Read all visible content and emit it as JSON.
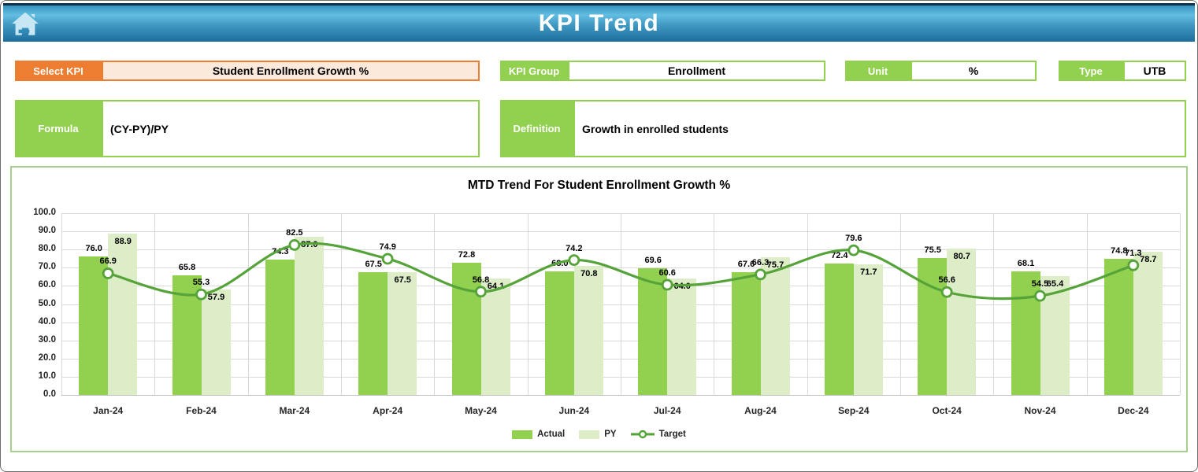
{
  "header": {
    "title": "KPI Trend",
    "home_icon": "home-icon"
  },
  "fields": {
    "select_kpi": {
      "label": "Select KPI",
      "value": "Student Enrollment Growth %"
    },
    "kpi_group": {
      "label": "KPI Group",
      "value": "Enrollment"
    },
    "unit": {
      "label": "Unit",
      "value": "%"
    },
    "type": {
      "label": "Type",
      "value": "UTB"
    },
    "formula": {
      "label": "Formula",
      "value": "(CY-PY)/PY"
    },
    "definition": {
      "label": "Definition",
      "value": "Growth in enrolled students"
    }
  },
  "colors": {
    "accent_orange": "#ED7D31",
    "accent_orange_fill": "#FBE9DC",
    "accent_green": "#92D050",
    "chart_border_green": "#A6CE8E",
    "banner_blue_light": "#63BDE1",
    "banner_blue_dark": "#1D6E9C",
    "gridline": "#D9D9D9"
  },
  "chart_data": {
    "type": "bar",
    "subtype": "bar+line combo",
    "title": "MTD Trend For Student Enrollment Growth %",
    "categories": [
      "Jan-24",
      "Feb-24",
      "Mar-24",
      "Apr-24",
      "May-24",
      "Jun-24",
      "Jul-24",
      "Aug-24",
      "Sep-24",
      "Oct-24",
      "Nov-24",
      "Dec-24"
    ],
    "series": [
      {
        "name": "Actual",
        "type": "bar",
        "color": "#92D050",
        "values": [
          76.0,
          65.8,
          74.3,
          67.5,
          72.8,
          68.0,
          69.6,
          67.6,
          72.4,
          75.5,
          68.1,
          74.8
        ]
      },
      {
        "name": "PY",
        "type": "bar",
        "color": "#DCEDC8",
        "values": [
          88.9,
          57.9,
          87.0,
          67.5,
          64.1,
          70.8,
          64.0,
          75.7,
          71.7,
          80.7,
          65.4,
          78.7
        ]
      },
      {
        "name": "Target",
        "type": "line",
        "color": "#55A339",
        "marker": "open-circle",
        "values": [
          66.9,
          55.3,
          82.5,
          74.9,
          56.8,
          74.2,
          60.6,
          66.3,
          79.6,
          56.6,
          54.5,
          71.3
        ]
      }
    ],
    "xlabel": "",
    "ylabel": "",
    "ylim": [
      0,
      100
    ],
    "ytick_step": 10,
    "ytick_format": "one-decimal",
    "grid": true,
    "legend_position": "bottom"
  }
}
